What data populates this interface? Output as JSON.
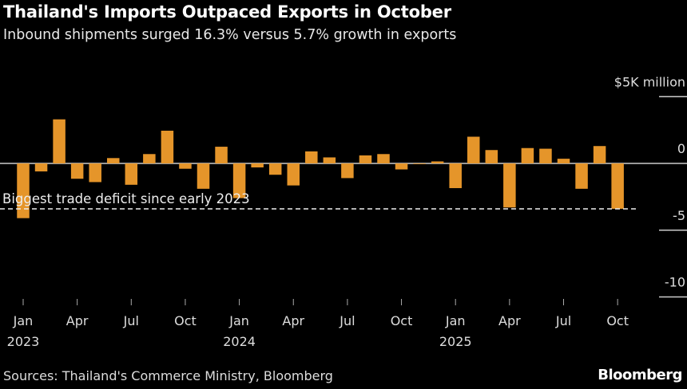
{
  "title": "Thailand's Imports Outpaced Exports in October",
  "subtitle": "Inbound shipments surged 16.3% versus 5.7% growth in exports",
  "source": "Sources: Thailand's Commerce Ministry, Bloomberg",
  "logo": "Bloomberg",
  "chart_data": {
    "type": "bar",
    "x_start": "Jan 2023",
    "x_end": "Oct 2025",
    "frequency": "monthly",
    "values": [
      -4.1,
      -0.6,
      3.3,
      -1.15,
      -1.4,
      0.4,
      -1.6,
      0.7,
      2.45,
      -0.4,
      -1.9,
      1.25,
      -2.6,
      -0.3,
      -0.85,
      -1.65,
      0.9,
      0.45,
      -1.1,
      0.6,
      0.7,
      -0.45,
      -0.05,
      0.15,
      -1.85,
      2.0,
      1.0,
      -3.3,
      1.15,
      1.1,
      0.35,
      -1.9,
      1.3,
      -3.4
    ],
    "ylim": [
      -10,
      5
    ],
    "yticks": [
      {
        "v": 5,
        "label": "$5K million"
      },
      {
        "v": 0,
        "label": "0"
      },
      {
        "v": -5,
        "label": "-5"
      },
      {
        "v": -10,
        "label": "-10"
      }
    ],
    "xticks": [
      {
        "i": 0,
        "label": "Jan",
        "year": "2023"
      },
      {
        "i": 3,
        "label": "Apr"
      },
      {
        "i": 6,
        "label": "Jul"
      },
      {
        "i": 9,
        "label": "Oct"
      },
      {
        "i": 12,
        "label": "Jan",
        "year": "2024"
      },
      {
        "i": 15,
        "label": "Apr"
      },
      {
        "i": 18,
        "label": "Jul"
      },
      {
        "i": 21,
        "label": "Oct"
      },
      {
        "i": 24,
        "label": "Jan",
        "year": "2025"
      },
      {
        "i": 27,
        "label": "Apr"
      },
      {
        "i": 30,
        "label": "Jul"
      },
      {
        "i": 33,
        "label": "Oct"
      }
    ],
    "annotation": {
      "text": "Biggest trade deficit since early 2023",
      "value": -3.4
    },
    "axis_position": "right",
    "grid": false,
    "bar_color": "#e5952a"
  }
}
